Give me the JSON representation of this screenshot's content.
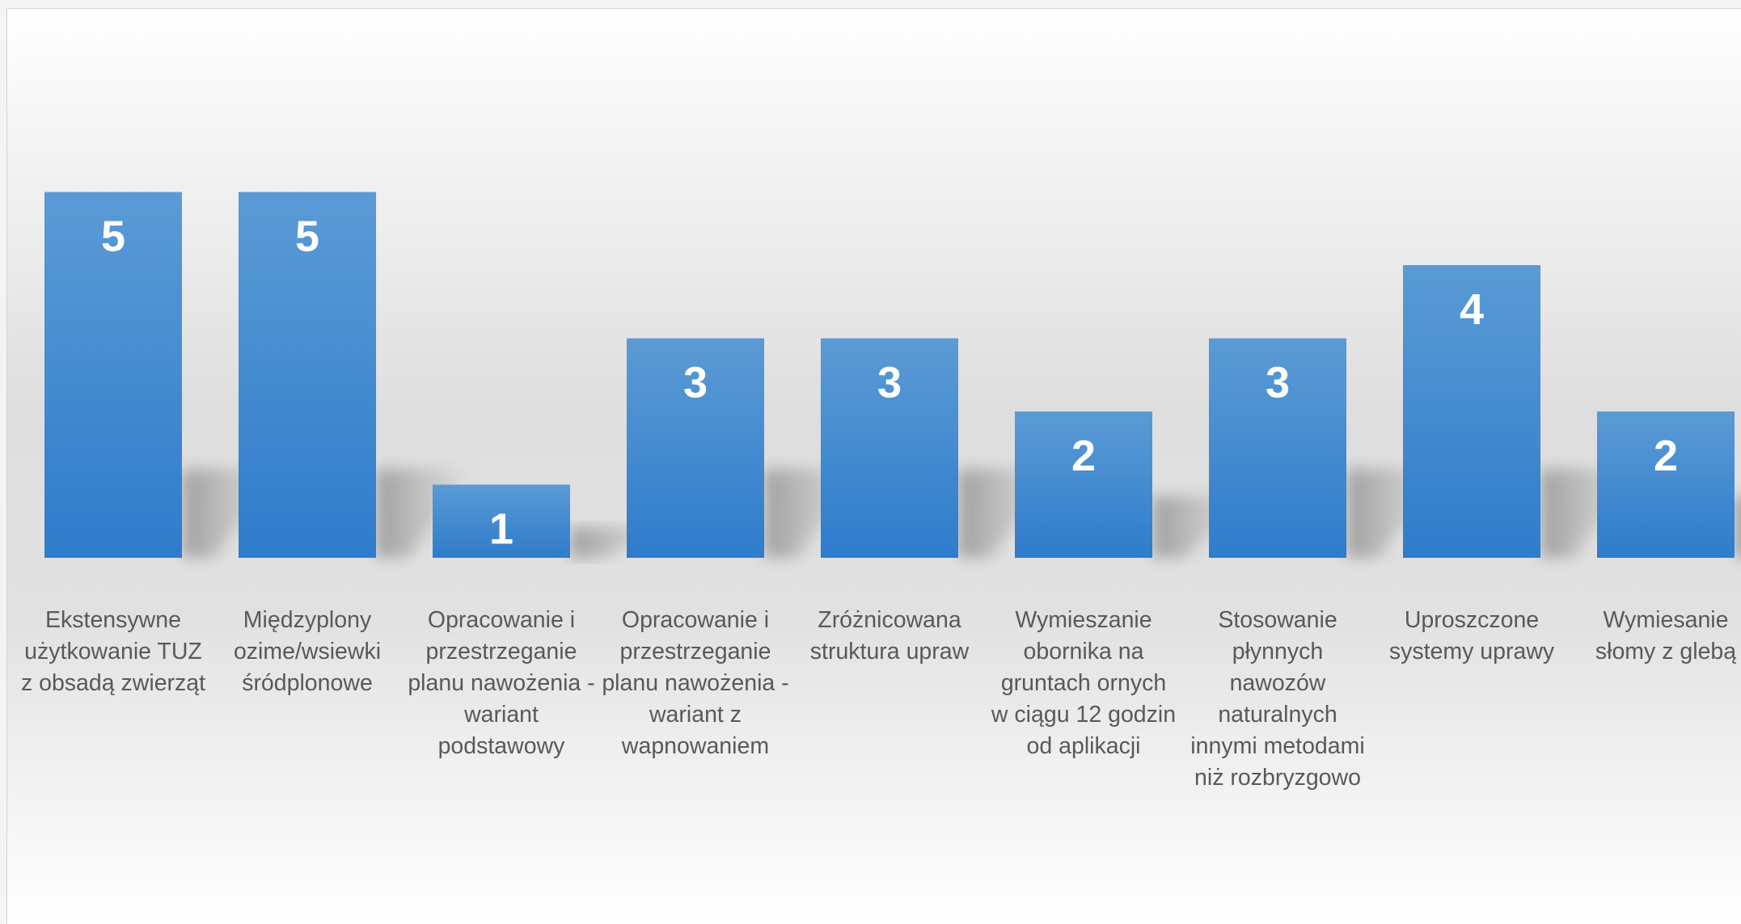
{
  "chart_data": {
    "type": "bar",
    "title": "",
    "xlabel": "",
    "ylabel": "",
    "ylim": [
      0,
      6
    ],
    "grid": false,
    "legend": "none",
    "categories": [
      "Ekstensywne\nużytkowanie TUZ\nz obsadą zwierząt",
      "Międzyplony\nozime/wsiewki\nśródplonowe",
      "Opracowanie i\nprzestrzeganie\nplanu nawożenia -\nwariant\npodstawowy",
      "Opracowanie i\nprzestrzeganie\nplanu nawożenia -\nwariant z\nwapnowaniem",
      "Zróżnicowana\nstruktura upraw",
      "Wymieszanie\nobornika na\ngruntach ornych\nw ciągu 12 godzin\nod aplikacji",
      "Stosowanie\npłynnych\nnawozów\nnaturalnych\ninnymi metodami\nniż rozbryzgowo",
      "Uproszczone\nsystemy uprawy",
      "Wymiesanie\nsłomy z glebą"
    ],
    "values": [
      5,
      5,
      1,
      3,
      3,
      2,
      3,
      4,
      2
    ],
    "colors": {
      "bar_top": "#5b9bd5",
      "bar_bottom": "#2e7ccb",
      "value_label": "#ffffff",
      "category_label": "#595959"
    }
  }
}
